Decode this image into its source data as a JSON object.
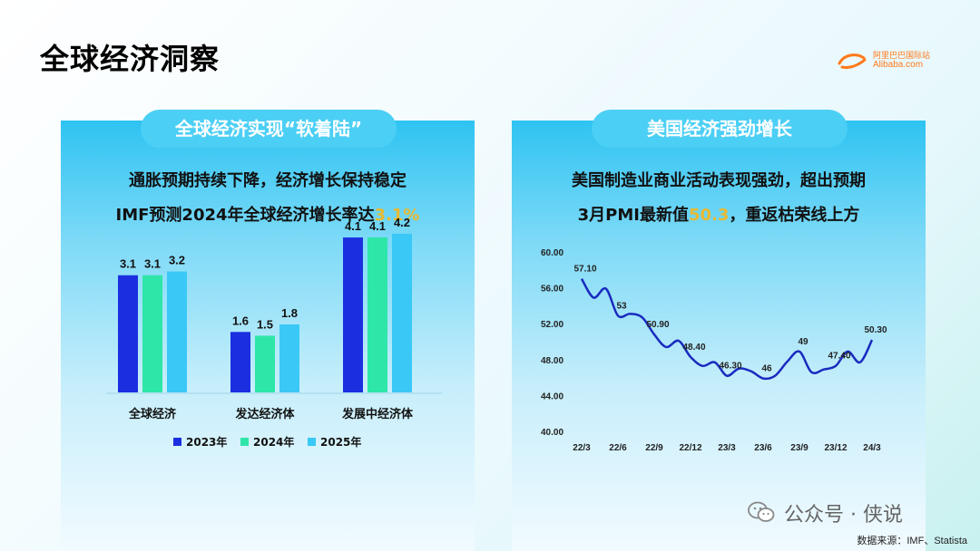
{
  "page": {
    "title": "全球经济洞察"
  },
  "logo": {
    "cn": "阿里巴巴国际站",
    "en": "Alibaba.com",
    "accent": "#ff7a1a"
  },
  "left_panel": {
    "tab": "全球经济实现“软着陆”",
    "line1": "通胀预期持续下降，经济增长保持稳定",
    "line2_prefix": "IMF预测2024年全球经济增长率达",
    "line2_highlight": "3.1%"
  },
  "right_panel": {
    "tab": "美国经济强劲增长",
    "line1": "美国制造业商业活动表现强劲，超出预期",
    "line2_prefix": "3月PMI最新值",
    "line2_highlight": "50.3",
    "line2_suffix": "，重返枯荣线上方"
  },
  "colors": {
    "s2023": "#1b2fe0",
    "s2024": "#2ee6a8",
    "s2025": "#3ac8f7",
    "line": "#1a2bbf",
    "highlight": "#e8b931"
  },
  "chart_data": [
    {
      "type": "bar",
      "categories": [
        "全球经济",
        "发达经济体",
        "发展中经济体"
      ],
      "series": [
        {
          "name": "2023年",
          "values": [
            3.1,
            1.6,
            4.1
          ]
        },
        {
          "name": "2024年",
          "values": [
            3.1,
            1.5,
            4.1
          ]
        },
        {
          "name": "2025年",
          "values": [
            3.2,
            1.8,
            4.2
          ]
        }
      ],
      "value_labels": [
        [
          "3.1",
          "1.6",
          "4.1"
        ],
        [
          "3.1",
          "1.5",
          "4.1"
        ],
        [
          "3.2",
          "1.8",
          "4.2"
        ]
      ],
      "title": "",
      "xlabel": "",
      "ylabel": "",
      "ylim": [
        0,
        4.5
      ],
      "grid": false,
      "legend": "bottom"
    },
    {
      "type": "line",
      "x_ticks": [
        "22/3",
        "22/6",
        "22/9",
        "22/12",
        "23/3",
        "23/6",
        "23/9",
        "23/12",
        "24/3"
      ],
      "y_ticks": [
        "40.00",
        "44.00",
        "48.00",
        "52.00",
        "56.00",
        "60.00"
      ],
      "ylim": [
        40,
        60
      ],
      "series": [
        {
          "x": [
            0,
            0.33,
            0.67,
            1,
            1.33,
            1.67,
            2,
            2.33,
            2.67,
            3,
            3.33,
            3.67,
            4,
            4.33,
            4.67,
            5,
            5.33,
            5.67,
            6,
            6.33,
            6.67,
            7,
            7.33,
            7.67,
            8
          ],
          "y": [
            57.1,
            55.0,
            56.0,
            53.0,
            53.2,
            52.8,
            50.9,
            49.5,
            50.2,
            48.4,
            47.4,
            47.8,
            46.3,
            47.1,
            46.8,
            46.0,
            46.3,
            47.9,
            49.0,
            46.7,
            47.0,
            47.4,
            49.0,
            47.8,
            50.3
          ]
        }
      ],
      "point_labels": [
        {
          "x": 0,
          "y": 57.1,
          "text": "57.10"
        },
        {
          "x": 1,
          "y": 53.0,
          "text": "53"
        },
        {
          "x": 2,
          "y": 50.9,
          "text": "50.90"
        },
        {
          "x": 3,
          "y": 48.4,
          "text": "48.40"
        },
        {
          "x": 4,
          "y": 46.3,
          "text": "46.30"
        },
        {
          "x": 5,
          "y": 46.0,
          "text": "46"
        },
        {
          "x": 6,
          "y": 49.0,
          "text": "49"
        },
        {
          "x": 7,
          "y": 47.4,
          "text": "47.40"
        },
        {
          "x": 8,
          "y": 50.3,
          "text": "50.30"
        }
      ],
      "title": "",
      "xlabel": "",
      "ylabel": "",
      "grid": false
    }
  ],
  "footer": {
    "source": "数据来源：IMF、Statista"
  },
  "watermark": {
    "text": "公众号 · 侠说"
  }
}
